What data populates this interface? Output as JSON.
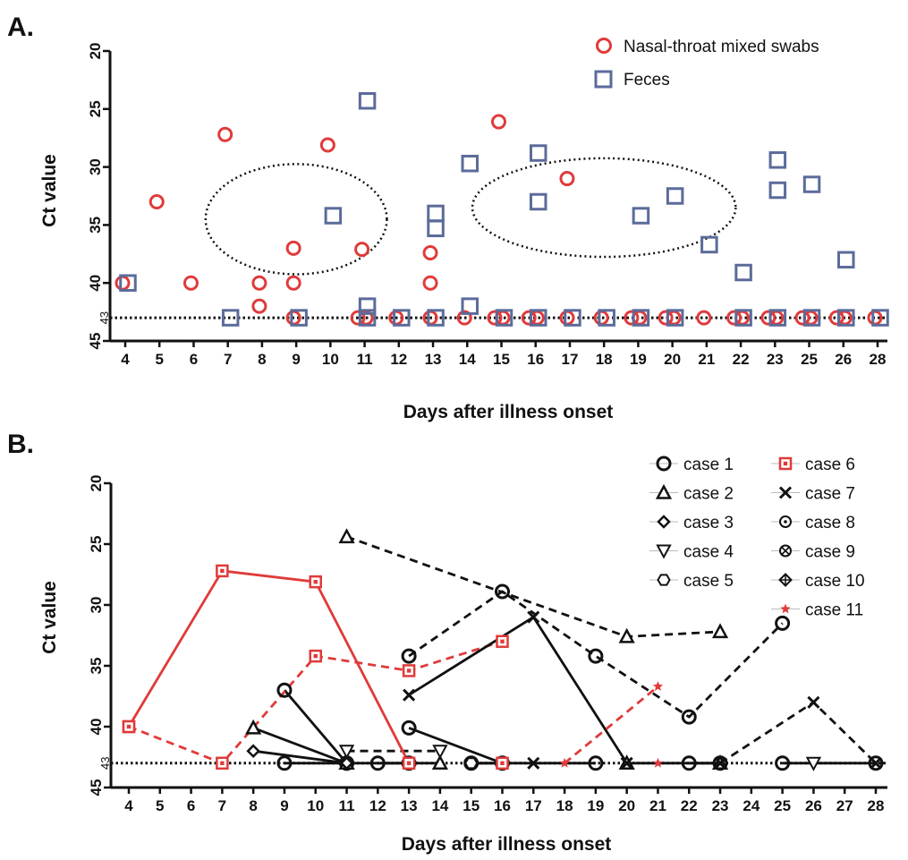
{
  "chart_data": [
    {
      "type": "scatter",
      "panel_label": "A.",
      "xlabel": "Days after illness onset",
      "ylabel": "Ct  value",
      "ylim": [
        20,
        45
      ],
      "y_inverted": true,
      "y_ticks": [
        "20",
        "25",
        "30",
        "35",
        "40",
        "45"
      ],
      "x_categories": [
        "4",
        "5",
        "6",
        "7",
        "8",
        "9",
        "10",
        "11",
        "12",
        "13",
        "14",
        "15",
        "16",
        "17",
        "18",
        "19",
        "20",
        "21",
        "22",
        "23",
        "25",
        "26",
        "28"
      ],
      "reference_line": {
        "y": 43,
        "label": "43",
        "style": "dotted"
      },
      "ellipses": [
        {
          "center_x": "9",
          "center_y": 34.5,
          "x_span": 5.3,
          "y_span": 9.5
        },
        {
          "center_x": "18",
          "center_y": 33.5,
          "x_span": 7.7,
          "y_span": 8.5
        }
      ],
      "legend_position": "top-right",
      "series": [
        {
          "name": "Nasal-throat mixed swabs",
          "marker": "circle",
          "color": "#e03a3a",
          "points": [
            [
              "4",
              40
            ],
            [
              "5",
              33
            ],
            [
              "6",
              40
            ],
            [
              "7",
              27.2
            ],
            [
              "8",
              40
            ],
            [
              "8",
              42
            ],
            [
              "9",
              37
            ],
            [
              "9",
              40
            ],
            [
              "9",
              43
            ],
            [
              "10",
              28.1
            ],
            [
              "11",
              37.1
            ],
            [
              "11",
              43
            ],
            [
              "11",
              43
            ],
            [
              "12",
              43
            ],
            [
              "13",
              37.4
            ],
            [
              "13",
              40
            ],
            [
              "13",
              43
            ],
            [
              "14",
              43
            ],
            [
              "15",
              26.1
            ],
            [
              "15",
              43
            ],
            [
              "15",
              43
            ],
            [
              "16",
              43
            ],
            [
              "16",
              43
            ],
            [
              "17",
              31
            ],
            [
              "17",
              43
            ],
            [
              "18",
              43
            ],
            [
              "19",
              43
            ],
            [
              "19",
              43
            ],
            [
              "20",
              43
            ],
            [
              "20",
              43
            ],
            [
              "21",
              43
            ],
            [
              "22",
              43
            ],
            [
              "22",
              43
            ],
            [
              "23",
              43
            ],
            [
              "23",
              43
            ],
            [
              "25",
              43
            ],
            [
              "25",
              43
            ],
            [
              "26",
              43
            ],
            [
              "26",
              43
            ],
            [
              "28",
              43
            ]
          ]
        },
        {
          "name": "Feces",
          "marker": "square",
          "color": "#5b6b9a",
          "points": [
            [
              "4",
              40
            ],
            [
              "7",
              43
            ],
            [
              "9",
              43
            ],
            [
              "10",
              34.2
            ],
            [
              "11",
              24.3
            ],
            [
              "11",
              42
            ],
            [
              "11",
              43
            ],
            [
              "12",
              43
            ],
            [
              "13",
              34
            ],
            [
              "13",
              35.3
            ],
            [
              "13",
              43
            ],
            [
              "14",
              29.7
            ],
            [
              "14",
              42
            ],
            [
              "15",
              43
            ],
            [
              "16",
              28.8
            ],
            [
              "16",
              33
            ],
            [
              "16",
              43
            ],
            [
              "17",
              43
            ],
            [
              "18",
              43
            ],
            [
              "19",
              34.2
            ],
            [
              "19",
              43
            ],
            [
              "20",
              32.5
            ],
            [
              "20",
              43
            ],
            [
              "21",
              36.7
            ],
            [
              "22",
              39.1
            ],
            [
              "22",
              43
            ],
            [
              "23",
              29.4
            ],
            [
              "23",
              32
            ],
            [
              "23",
              43
            ],
            [
              "25",
              31.5
            ],
            [
              "25",
              43
            ],
            [
              "26",
              38
            ],
            [
              "26",
              43
            ],
            [
              "28",
              43
            ]
          ]
        }
      ]
    },
    {
      "type": "line",
      "panel_label": "B.",
      "xlabel": "Days after illness onset",
      "ylabel": "Ct  value",
      "ylim": [
        20,
        45
      ],
      "y_inverted": true,
      "y_ticks": [
        "20",
        "25",
        "30",
        "35",
        "40",
        "45"
      ],
      "x_categories": [
        "4",
        "5",
        "6",
        "7",
        "8",
        "9",
        "10",
        "11",
        "12",
        "13",
        "14",
        "15",
        "16",
        "17",
        "18",
        "19",
        "20",
        "21",
        "22",
        "23",
        "24",
        "25",
        "26",
        "27",
        "28"
      ],
      "reference_line": {
        "y": 43,
        "label": "43",
        "style": "dotted"
      },
      "legend_position": "top-right",
      "series": [
        {
          "name": "case 1",
          "marker": "circle",
          "color": "#111111",
          "segments": [
            {
              "dash": true,
              "points": [
                [
                  "13",
                  34.2
                ],
                [
                  "16",
                  28.9
                ],
                [
                  "19",
                  34.2
                ],
                [
                  "22",
                  39.2
                ],
                [
                  "25",
                  31.5
                ]
              ]
            },
            {
              "dash": false,
              "points": [
                [
                  "9",
                  37
                ],
                [
                  "11",
                  43
                ]
              ]
            },
            {
              "dash": false,
              "points": [
                [
                  "13",
                  40.1
                ],
                [
                  "16",
                  43
                ]
              ]
            },
            {
              "dash": false,
              "points": [
                [
                  "9",
                  43
                ],
                [
                  "11",
                  43
                ]
              ]
            },
            {
              "dash": false,
              "points": [
                [
                  "12",
                  43
                ],
                [
                  "13",
                  43
                ]
              ]
            },
            {
              "dash": false,
              "points": [
                [
                  "15",
                  43
                ],
                [
                  "19",
                  43
                ]
              ]
            },
            {
              "dash": false,
              "points": [
                [
                  "22",
                  43
                ],
                [
                  "23",
                  43
                ]
              ]
            },
            {
              "dash": false,
              "points": [
                [
                  "25",
                  43
                ],
                [
                  "28",
                  43
                ]
              ]
            }
          ]
        },
        {
          "name": "case 2",
          "marker": "triangle",
          "color": "#111111",
          "segments": [
            {
              "dash": true,
              "points": [
                [
                  "11",
                  24.4
                ],
                [
                  "20",
                  32.6
                ],
                [
                  "23",
                  32.2
                ]
              ]
            },
            {
              "dash": false,
              "points": [
                [
                  "8",
                  40.1
                ],
                [
                  "11",
                  43
                ]
              ]
            },
            {
              "dash": false,
              "points": [
                [
                  "11",
                  43
                ],
                [
                  "14",
                  43
                ]
              ]
            },
            {
              "dash": false,
              "points": [
                [
                  "20",
                  43
                ],
                [
                  "23",
                  43
                ]
              ]
            }
          ]
        },
        {
          "name": "case 3",
          "marker": "diamond",
          "color": "#111111",
          "segments": [
            {
              "dash": false,
              "points": [
                [
                  "8",
                  42
                ],
                [
                  "11",
                  43
                ]
              ]
            }
          ]
        },
        {
          "name": "case 4",
          "marker": "triangle-down",
          "color": "#111111",
          "segments": [
            {
              "dash": true,
              "points": [
                [
                  "11",
                  42
                ],
                [
                  "14",
                  42
                ]
              ]
            },
            {
              "dash": false,
              "points": [
                [
                  "26",
                  43
                ]
              ]
            }
          ]
        },
        {
          "name": "case 5",
          "marker": "hexagon",
          "color": "#111111",
          "segments": [
            {
              "dash": false,
              "points": [
                [
                  "15",
                  43
                ],
                [
                  "16",
                  43
                ]
              ]
            }
          ]
        },
        {
          "name": "case 6",
          "marker": "square-dot",
          "color": "#e03a3a",
          "segments": [
            {
              "dash": false,
              "points": [
                [
                  "4",
                  40
                ],
                [
                  "7",
                  27.2
                ],
                [
                  "10",
                  28.1
                ],
                [
                  "13",
                  43
                ]
              ]
            },
            {
              "dash": true,
              "points": [
                [
                  "4",
                  40
                ],
                [
                  "7",
                  43
                ],
                [
                  "10",
                  34.2
                ],
                [
                  "13",
                  35.4
                ],
                [
                  "16",
                  33
                ]
              ]
            },
            {
              "dash": false,
              "points": [
                [
                  "16",
                  43
                ]
              ]
            }
          ]
        },
        {
          "name": "case 7",
          "marker": "x",
          "color": "#111111",
          "segments": [
            {
              "dash": false,
              "points": [
                [
                  "13",
                  37.4
                ],
                [
                  "17",
                  31
                ],
                [
                  "20",
                  43
                ]
              ]
            },
            {
              "dash": true,
              "points": [
                [
                  "23",
                  43
                ],
                [
                  "26",
                  38
                ],
                [
                  "28",
                  43
                ]
              ]
            },
            {
              "dash": false,
              "points": [
                [
                  "17",
                  43
                ]
              ]
            }
          ]
        },
        {
          "name": "case 8",
          "marker": "circle-dot",
          "color": "#111111",
          "segments": []
        },
        {
          "name": "case 9",
          "marker": "circle-x",
          "color": "#111111",
          "segments": []
        },
        {
          "name": "case 10",
          "marker": "diamond-cross",
          "color": "#111111",
          "segments": []
        },
        {
          "name": "case 11",
          "marker": "star",
          "color": "#e03a3a",
          "segments": [
            {
              "dash": true,
              "points": [
                [
                  "18",
                  43
                ],
                [
                  "21",
                  36.7
                ]
              ]
            },
            {
              "dash": false,
              "points": [
                [
                  "21",
                  43
                ]
              ]
            }
          ]
        }
      ]
    }
  ]
}
